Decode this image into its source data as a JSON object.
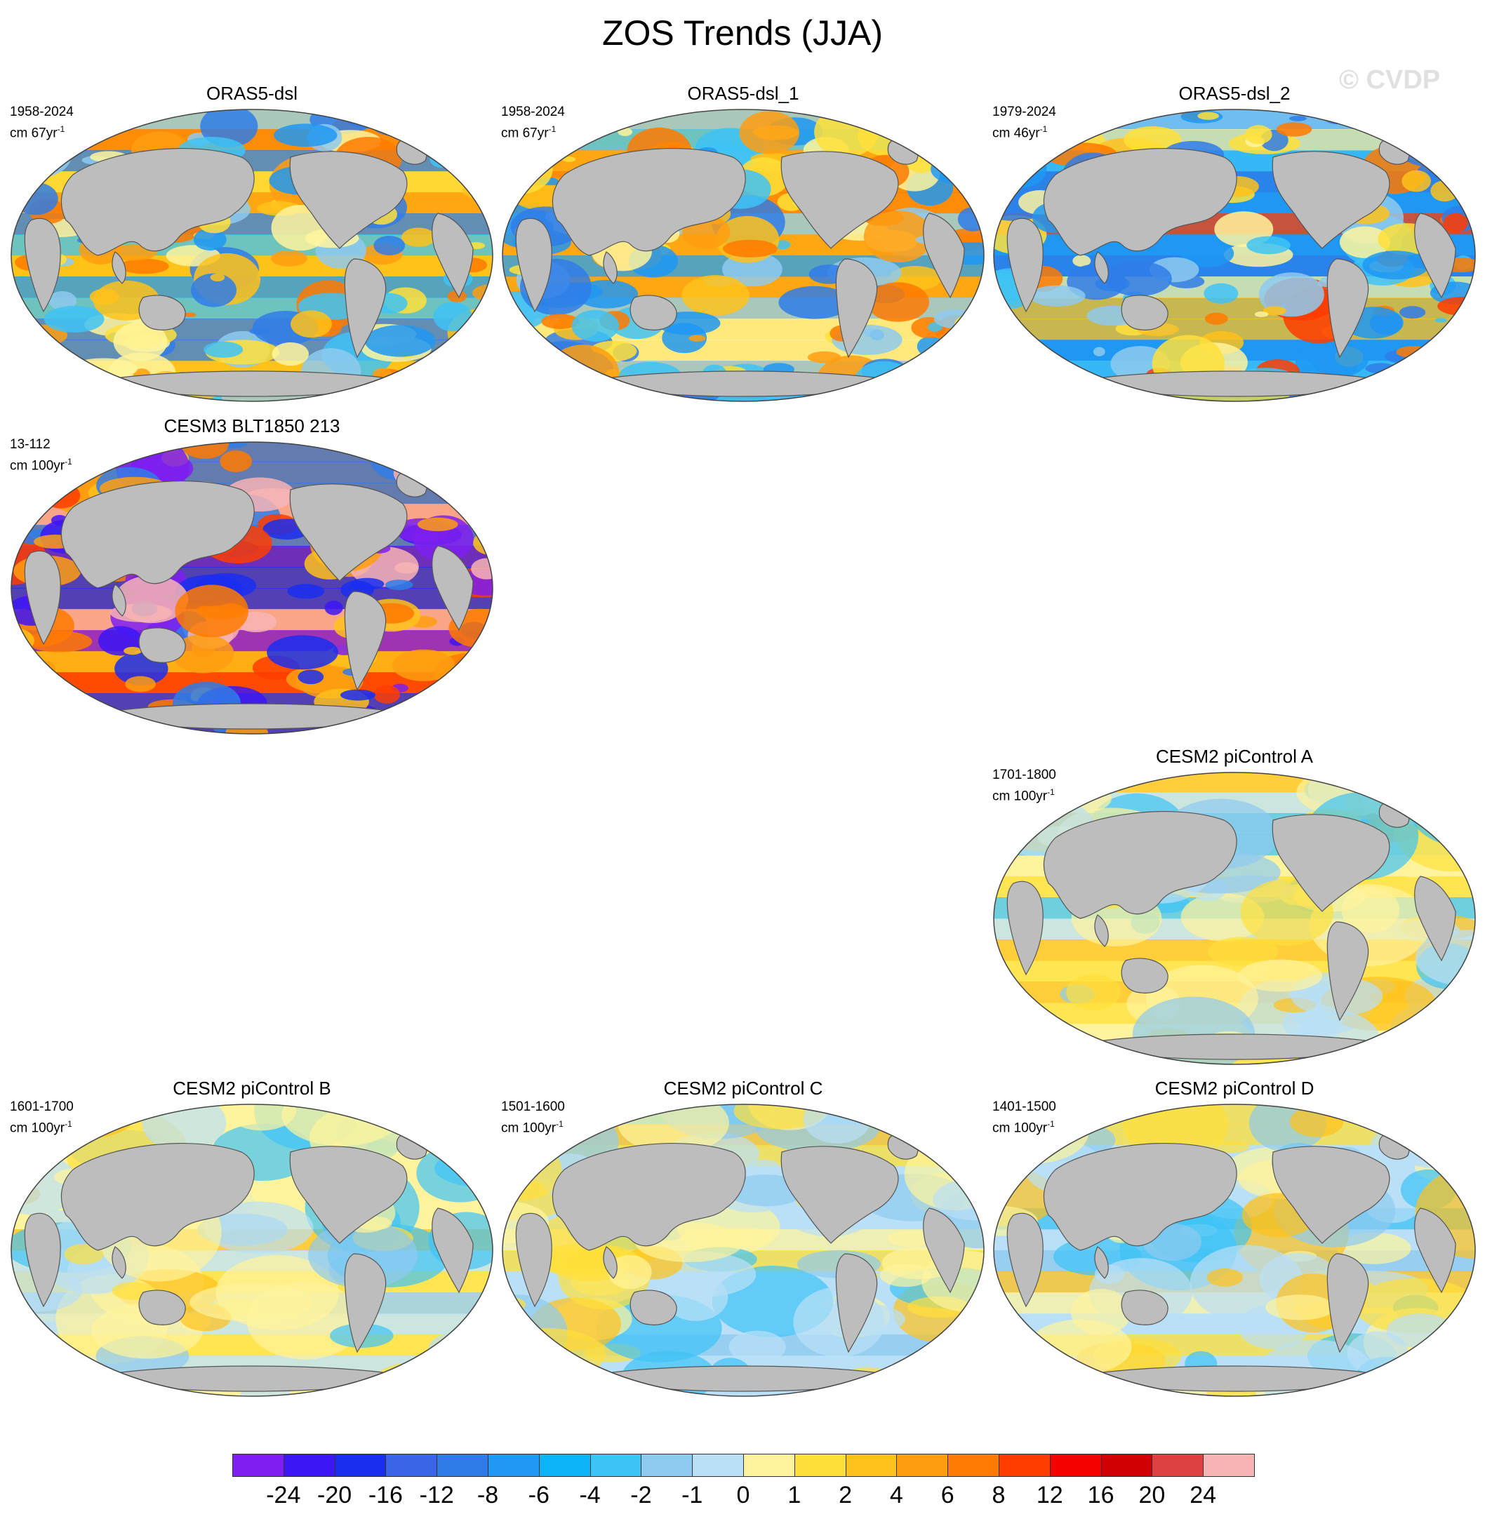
{
  "title": "ZOS Trends (JJA)",
  "watermark": "© CVDP",
  "panels": [
    {
      "id": "orsa5-dsl",
      "title": "ORAS5-dsl",
      "years": "1958-2024",
      "unit": "cm 67yr",
      "exp": "-1",
      "style": "strong",
      "palette": "obs1"
    },
    {
      "id": "orsa5-dsl-1",
      "title": "ORAS5-dsl_1",
      "years": "1958-2024",
      "unit": "cm 67yr",
      "exp": "-1",
      "style": "strong",
      "palette": "obs1"
    },
    {
      "id": "orsa5-dsl-2",
      "title": "ORAS5-dsl_2",
      "years": "1979-2024",
      "unit": "cm 46yr",
      "exp": "-1",
      "style": "strong",
      "palette": "obs2"
    },
    {
      "id": "cesm3",
      "title": "CESM3 BLT1850 213",
      "years": "13-112",
      "unit": "cm 100yr",
      "exp": "-1",
      "style": "strong",
      "palette": "cesm3"
    },
    {
      "id": "picontrol-a",
      "title": "CESM2 piControl A",
      "years": "1701-1800",
      "unit": "cm 100yr",
      "exp": "-1",
      "style": "weak",
      "palette": "picA"
    },
    {
      "id": "picontrol-b",
      "title": "CESM2 piControl B",
      "years": "1601-1700",
      "unit": "cm 100yr",
      "exp": "-1",
      "style": "weak",
      "palette": "picB"
    },
    {
      "id": "picontrol-c",
      "title": "CESM2 piControl C",
      "years": "1501-1600",
      "unit": "cm 100yr",
      "exp": "-1",
      "style": "weak",
      "palette": "picC"
    },
    {
      "id": "picontrol-d",
      "title": "CESM2 piControl D",
      "years": "1401-1500",
      "unit": "cm 100yr",
      "exp": "-1",
      "style": "weak",
      "palette": "picD"
    }
  ],
  "colorbar": {
    "colors": [
      "#7e1ef0",
      "#3c16f5",
      "#1a2ef0",
      "#3c64e6",
      "#2f7ce8",
      "#1f98f3",
      "#0ab4f7",
      "#3ec3f6",
      "#8ecaef",
      "#b9e0f6",
      "#fff49d",
      "#ffe03a",
      "#ffc21a",
      "#ff9e10",
      "#ff7a00",
      "#ff3c00",
      "#f60000",
      "#d00000",
      "#dc4040",
      "#f8b4b4"
    ],
    "labels": [
      "-24",
      "-20",
      "-16",
      "-12",
      "-8",
      "-6",
      "-4",
      "-2",
      "-1",
      "0",
      "1",
      "2",
      "4",
      "6",
      "8",
      "12",
      "16",
      "20",
      "24"
    ]
  },
  "land_color": "#bdbdbd"
}
